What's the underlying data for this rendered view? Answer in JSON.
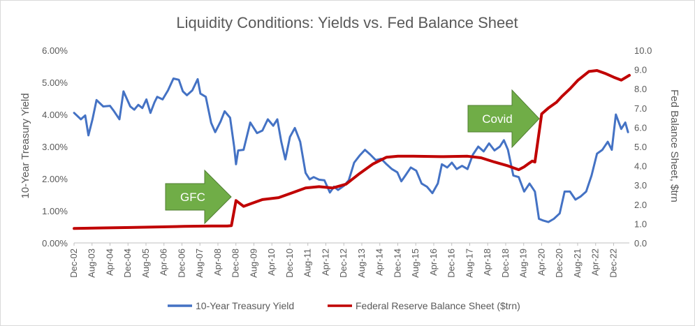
{
  "chart_data": {
    "type": "line",
    "title": "Liquidity Conditions: Yields vs. Fed Balance Sheet",
    "ylabel": "10-Year Treasury Yield",
    "y2label": "Fed Balance Sheet, $trn",
    "ylim": [
      0,
      6
    ],
    "y2lim": [
      0,
      10
    ],
    "y_ticks": [
      "0.00%",
      "1.00%",
      "2.00%",
      "3.00%",
      "4.00%",
      "5.00%",
      "6.00%"
    ],
    "y2_ticks": [
      "0.0",
      "1.0",
      "2.0",
      "3.0",
      "4.0",
      "5.0",
      "6.0",
      "7.0",
      "8.0",
      "9.0",
      "10.0"
    ],
    "x_range": [
      2002.917,
      2023.5
    ],
    "x_ticks": [
      "Dec-02",
      "Aug-03",
      "Apr-04",
      "Dec-04",
      "Aug-05",
      "Apr-06",
      "Dec-06",
      "Aug-07",
      "Apr-08",
      "Dec-08",
      "Aug-09",
      "Apr-10",
      "Dec-10",
      "Aug-11",
      "Apr-12",
      "Dec-12",
      "Aug-13",
      "Apr-14",
      "Dec-14",
      "Aug-15",
      "Apr-16",
      "Dec-16",
      "Aug-17",
      "Apr-18",
      "Dec-18",
      "Aug-19",
      "Apr-20",
      "Dec-20",
      "Aug-21",
      "Apr-22",
      "Dec-22"
    ],
    "grid": false,
    "legend_position": "bottom",
    "annotations": [
      {
        "text": "GFC",
        "at": [
          2008.5,
          1.5
        ]
      },
      {
        "text": "Covid",
        "at": [
          2019.6,
          3.8
        ]
      }
    ],
    "series": [
      {
        "name": "10-Year Treasury Yield",
        "axis": "left",
        "color": "#4472C4",
        "x": [
          2002.92,
          2003.17,
          2003.33,
          2003.45,
          2003.6,
          2003.75,
          2004.0,
          2004.25,
          2004.4,
          2004.6,
          2004.75,
          2005.0,
          2005.15,
          2005.3,
          2005.45,
          2005.6,
          2005.75,
          2005.9,
          2006.0,
          2006.2,
          2006.4,
          2006.6,
          2006.8,
          2006.95,
          2007.1,
          2007.3,
          2007.5,
          2007.6,
          2007.8,
          2008.0,
          2008.15,
          2008.35,
          2008.5,
          2008.7,
          2008.85,
          2008.92,
          2009.0,
          2009.2,
          2009.45,
          2009.7,
          2009.9,
          2010.1,
          2010.3,
          2010.45,
          2010.6,
          2010.75,
          2010.92,
          2011.1,
          2011.3,
          2011.5,
          2011.65,
          2011.8,
          2012.0,
          2012.2,
          2012.4,
          2012.55,
          2012.7,
          2012.92,
          2013.1,
          2013.3,
          2013.5,
          2013.7,
          2013.9,
          2014.1,
          2014.3,
          2014.5,
          2014.7,
          2014.9,
          2015.05,
          2015.2,
          2015.4,
          2015.6,
          2015.8,
          2016.0,
          2016.2,
          2016.4,
          2016.55,
          2016.75,
          2016.92,
          2017.1,
          2017.3,
          2017.5,
          2017.7,
          2017.9,
          2018.1,
          2018.3,
          2018.5,
          2018.7,
          2018.85,
          2019.0,
          2019.2,
          2019.4,
          2019.6,
          2019.8,
          2020.0,
          2020.15,
          2020.3,
          2020.5,
          2020.7,
          2020.92,
          2021.1,
          2021.3,
          2021.5,
          2021.7,
          2021.9,
          2022.1,
          2022.3,
          2022.5,
          2022.7,
          2022.85,
          2023.0,
          2023.2,
          2023.35,
          2023.45
        ],
        "y": [
          4.05,
          3.85,
          3.97,
          3.35,
          3.85,
          4.45,
          4.25,
          4.27,
          4.1,
          3.85,
          4.72,
          4.25,
          4.15,
          4.3,
          4.2,
          4.47,
          4.05,
          4.38,
          4.55,
          4.47,
          4.75,
          5.12,
          5.08,
          4.72,
          4.6,
          4.75,
          5.1,
          4.65,
          4.55,
          3.74,
          3.45,
          3.78,
          4.1,
          3.9,
          3.0,
          2.45,
          2.88,
          2.9,
          3.75,
          3.42,
          3.5,
          3.85,
          3.65,
          3.85,
          3.15,
          2.6,
          3.3,
          3.58,
          3.15,
          2.18,
          1.98,
          2.05,
          1.97,
          1.95,
          1.57,
          1.75,
          1.65,
          1.78,
          1.95,
          2.5,
          2.72,
          2.9,
          2.75,
          2.58,
          2.62,
          2.45,
          2.3,
          2.2,
          1.92,
          2.1,
          2.35,
          2.25,
          1.85,
          1.75,
          1.55,
          1.85,
          2.45,
          2.35,
          2.5,
          2.3,
          2.4,
          2.3,
          2.75,
          3.0,
          2.85,
          3.1,
          2.88,
          3.0,
          3.2,
          2.9,
          2.1,
          2.05,
          1.6,
          1.85,
          1.6,
          0.75,
          0.7,
          0.65,
          0.75,
          0.92,
          1.6,
          1.6,
          1.35,
          1.45,
          1.6,
          2.1,
          2.78,
          2.9,
          3.15,
          2.9,
          4.0,
          3.55,
          3.75,
          3.45
        ]
      },
      {
        "name": "Federal Reserve Balance Sheet ($trn)",
        "axis": "right",
        "color": "#C00000",
        "x": [
          2002.92,
          2004.0,
          2005.0,
          2006.0,
          2007.0,
          2008.0,
          2008.6,
          2008.75,
          2008.92,
          2009.2,
          2009.5,
          2009.9,
          2010.5,
          2011.0,
          2011.5,
          2012.0,
          2012.5,
          2013.0,
          2013.5,
          2014.0,
          2014.5,
          2014.92,
          2015.5,
          2016.5,
          2017.5,
          2018.0,
          2018.5,
          2019.0,
          2019.4,
          2019.6,
          2019.75,
          2019.9,
          2020.0,
          2020.25,
          2020.5,
          2020.8,
          2021.0,
          2021.3,
          2021.6,
          2022.0,
          2022.3,
          2022.6,
          2022.92,
          2023.2,
          2023.5
        ],
        "y": [
          0.75,
          0.78,
          0.8,
          0.83,
          0.86,
          0.88,
          0.88,
          0.9,
          2.2,
          1.9,
          2.05,
          2.25,
          2.35,
          2.6,
          2.85,
          2.92,
          2.85,
          3.05,
          3.6,
          4.1,
          4.45,
          4.5,
          4.5,
          4.48,
          4.5,
          4.42,
          4.2,
          4.0,
          3.8,
          3.95,
          4.1,
          4.25,
          4.2,
          6.7,
          7.0,
          7.3,
          7.6,
          8.0,
          8.45,
          8.9,
          8.95,
          8.8,
          8.6,
          8.45,
          8.7
        ]
      }
    ]
  }
}
